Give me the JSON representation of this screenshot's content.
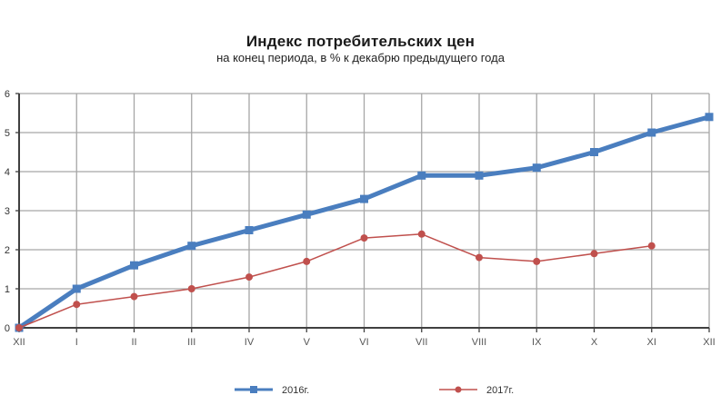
{
  "chart_data": {
    "type": "line",
    "title": "Индекс потребительских  цен",
    "subtitle": "на конец  периода, в % к декабрю предыдущего года",
    "xlabel": "",
    "ylabel": "",
    "categories": [
      "XII",
      "I",
      "II",
      "III",
      "IV",
      "V",
      "VI",
      "VII",
      "VIII",
      "IX",
      "X",
      "XI",
      "XII"
    ],
    "ylim": [
      0,
      6
    ],
    "yticks": [
      0,
      1,
      2,
      3,
      4,
      5,
      6
    ],
    "grid": true,
    "legend_position": "bottom",
    "series": [
      {
        "name": "2016г.",
        "color": "#4a7ebf",
        "line_width": 5,
        "marker": "square",
        "values": [
          0,
          1.0,
          1.6,
          2.1,
          2.5,
          2.9,
          3.3,
          3.9,
          3.9,
          4.1,
          4.5,
          5.0,
          5.4
        ]
      },
      {
        "name": "2017г.",
        "color": "#c0504d",
        "line_width": 1.5,
        "marker": "circle",
        "values": [
          0,
          0.6,
          0.8,
          1.0,
          1.3,
          1.7,
          2.3,
          2.4,
          1.8,
          1.7,
          1.9,
          2.1
        ]
      }
    ]
  },
  "colors": {
    "grid": "#a6a6a6",
    "axis": "#404040",
    "background": "#ffffff"
  }
}
